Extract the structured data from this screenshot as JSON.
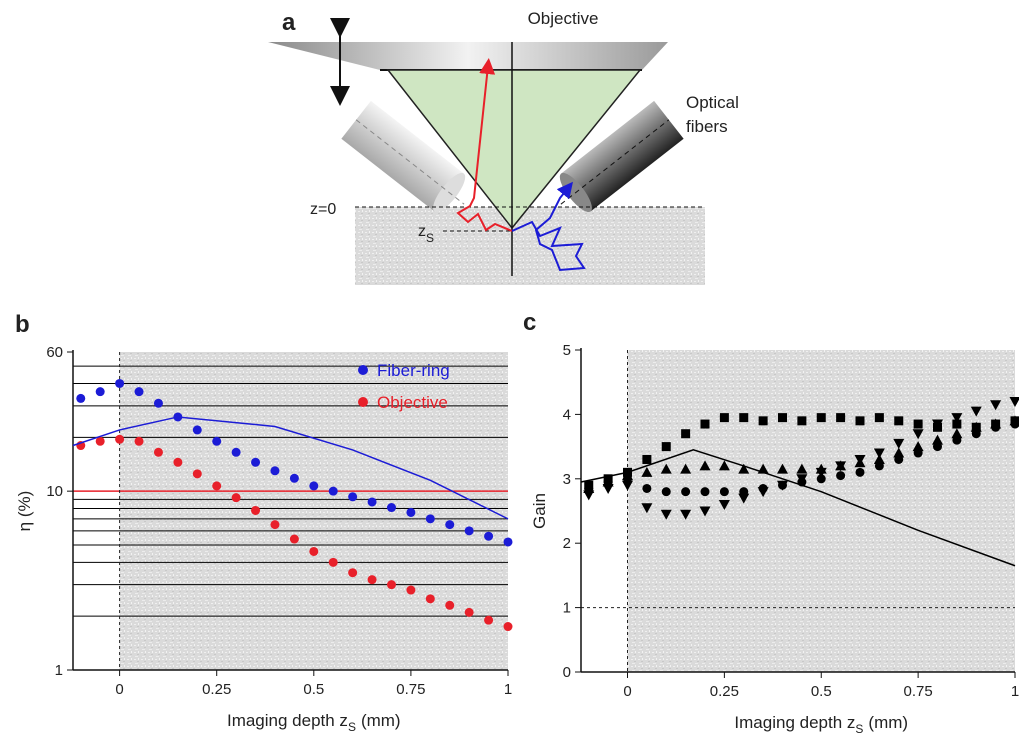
{
  "figure_a": {
    "panel_label": "a",
    "objective_label": "Objective",
    "fiber_label": [
      "Optical",
      "fibers"
    ],
    "surface_label": "z=0",
    "depth_label": {
      "text": "z",
      "sub": "S"
    }
  },
  "chart_data": [
    {
      "type": "scatter",
      "label": "b",
      "yscale": "log",
      "y_label": "η (%)",
      "x_label": {
        "text": "Imaging depth z",
        "sub": "S",
        "suffix": "(mm)"
      },
      "xlim": [
        -0.12,
        1
      ],
      "xticks": [
        0,
        0.25,
        0.5,
        0.75,
        1
      ],
      "ylim": [
        1,
        60
      ],
      "yticks": [
        1,
        10,
        60
      ],
      "grid_values": [
        2,
        3,
        4,
        5,
        6,
        7,
        8,
        9,
        10,
        20,
        30,
        40,
        50
      ],
      "grid_color": "#000000",
      "highlight": {
        "value": 10,
        "color": "#e8202a"
      },
      "reference_lines": [
        {
          "axis": "x",
          "value": 0
        }
      ],
      "legend": "upper right",
      "series": [
        {
          "name": "Fiber-ring",
          "color": "#1c1cd6",
          "mode": "markers",
          "marker": "circle",
          "x": [
            -0.1,
            -0.05,
            0,
            0.05,
            0.1,
            0.15,
            0.2,
            0.25,
            0.3,
            0.35,
            0.4,
            0.45,
            0.5,
            0.55,
            0.6,
            0.65,
            0.7,
            0.75,
            0.8,
            0.85,
            0.9,
            0.95,
            1
          ],
          "values": [
            33,
            36,
            40,
            36,
            31,
            26,
            22,
            19,
            16.5,
            14.5,
            13,
            11.8,
            10.7,
            10,
            9.3,
            8.7,
            8.1,
            7.6,
            7,
            6.5,
            6,
            5.6,
            5.2
          ]
        },
        {
          "name": "Objective",
          "color": "#e8202a",
          "mode": "markers",
          "marker": "circle",
          "x": [
            -0.1,
            -0.05,
            0,
            0.05,
            0.1,
            0.15,
            0.2,
            0.25,
            0.3,
            0.35,
            0.4,
            0.45,
            0.5,
            0.55,
            0.6,
            0.65,
            0.7,
            0.75,
            0.8,
            0.85,
            0.9,
            0.95,
            1
          ],
          "values": [
            18,
            19,
            19.5,
            19,
            16.5,
            14.5,
            12.5,
            10.7,
            9.2,
            7.8,
            6.5,
            5.4,
            4.6,
            4,
            3.5,
            3.2,
            3,
            2.8,
            2.5,
            2.3,
            2.1,
            1.9,
            1.75
          ]
        },
        {
          "color": "#1c1cd6",
          "mode": "line",
          "x": [
            -0.12,
            0,
            0.15,
            0.4,
            0.6,
            0.8,
            1
          ],
          "values": [
            18,
            22,
            26,
            23,
            17,
            11.5,
            7
          ]
        }
      ]
    },
    {
      "type": "scatter",
      "label": "c",
      "yscale": "linear",
      "y_label": "Gain",
      "x_label": {
        "text": "Imaging depth z",
        "sub": "S",
        "suffix": "(mm)"
      },
      "xlim": [
        -0.12,
        1
      ],
      "xticks": [
        0,
        0.25,
        0.5,
        0.75,
        1
      ],
      "ylim": [
        0,
        5
      ],
      "yticks": [
        0,
        1,
        2,
        3,
        4,
        5
      ],
      "reference_lines": [
        {
          "axis": "x",
          "value": 0
        },
        {
          "axis": "y",
          "value": 1
        }
      ],
      "series": [
        {
          "color": "#000000",
          "mode": "markers",
          "marker": "square",
          "x": [
            -0.1,
            -0.05,
            0,
            0.05,
            0.1,
            0.15,
            0.2,
            0.25,
            0.3,
            0.35,
            0.4,
            0.45,
            0.5,
            0.55,
            0.6,
            0.65,
            0.7,
            0.75,
            0.8,
            0.85,
            0.9,
            0.95,
            1
          ],
          "values": [
            2.9,
            3,
            3.1,
            3.3,
            3.5,
            3.7,
            3.85,
            3.95,
            3.95,
            3.9,
            3.95,
            3.9,
            3.95,
            3.95,
            3.9,
            3.95,
            3.9,
            3.85,
            3.8,
            3.85,
            3.8,
            3.85,
            3.9
          ]
        },
        {
          "color": "#000000",
          "mode": "markers",
          "marker": "triangle",
          "x": [
            -0.1,
            -0.05,
            0,
            0.05,
            0.1,
            0.15,
            0.2,
            0.25,
            0.3,
            0.35,
            0.4,
            0.45,
            0.5,
            0.55,
            0.6,
            0.65,
            0.7,
            0.75,
            0.8,
            0.85,
            0.9,
            0.95,
            1
          ],
          "values": [
            2.85,
            2.95,
            3.05,
            3.1,
            3.15,
            3.15,
            3.2,
            3.2,
            3.15,
            3.15,
            3.15,
            3.15,
            3.15,
            3.2,
            3.25,
            3.3,
            3.4,
            3.5,
            3.6,
            3.7,
            3.8,
            3.85,
            3.9
          ]
        },
        {
          "color": "#000000",
          "mode": "markers",
          "marker": "circle",
          "x": [
            -0.1,
            -0.05,
            0,
            0.05,
            0.1,
            0.15,
            0.2,
            0.25,
            0.3,
            0.35,
            0.4,
            0.45,
            0.5,
            0.55,
            0.6,
            0.65,
            0.7,
            0.75,
            0.8,
            0.85,
            0.9,
            0.95,
            1
          ],
          "values": [
            2.85,
            2.95,
            3,
            2.85,
            2.8,
            2.8,
            2.8,
            2.8,
            2.8,
            2.85,
            2.9,
            2.95,
            3,
            3.05,
            3.1,
            3.2,
            3.3,
            3.4,
            3.5,
            3.6,
            3.7,
            3.8,
            3.85
          ]
        },
        {
          "color": "#000000",
          "mode": "markers",
          "marker": "triangle-down",
          "x": [
            -0.1,
            -0.05,
            0,
            0.05,
            0.1,
            0.15,
            0.2,
            0.25,
            0.3,
            0.35,
            0.4,
            0.45,
            0.5,
            0.55,
            0.6,
            0.65,
            0.7,
            0.75,
            0.8,
            0.85,
            0.9,
            0.95,
            1
          ],
          "values": [
            2.75,
            2.85,
            2.9,
            2.55,
            2.45,
            2.45,
            2.5,
            2.6,
            2.7,
            2.8,
            2.9,
            3,
            3.1,
            3.2,
            3.3,
            3.4,
            3.55,
            3.7,
            3.85,
            3.95,
            4.05,
            4.15,
            4.2
          ]
        },
        {
          "color": "#000000",
          "mode": "line",
          "x": [
            -0.12,
            0,
            0.17,
            0.3,
            0.5,
            0.75,
            1
          ],
          "values": [
            2.95,
            3.1,
            3.45,
            3.2,
            2.8,
            2.2,
            1.65
          ]
        }
      ]
    }
  ]
}
